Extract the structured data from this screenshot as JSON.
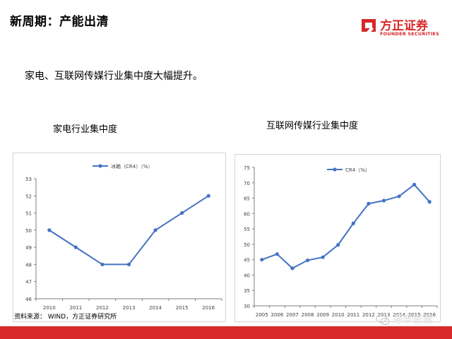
{
  "header": {
    "title": "新周期：产能出清",
    "logo_cn": "方正证券",
    "logo_en": "FOUNDER SECURITIES",
    "brand_color": "#d7282a"
  },
  "subtitle": "家电、互联网传媒行业集中度大幅提升。",
  "source": "资料来源： WIND，方正证券研究所",
  "watermark": "泽平宏观",
  "chart_data": [
    {
      "type": "line",
      "title": "家电行业集中度",
      "categories": [
        "2010",
        "2011",
        "2012",
        "2013",
        "2014",
        "2015",
        "2016"
      ],
      "series": [
        {
          "name": "冰箱（CR4）（%）",
          "values": [
            50,
            49,
            48,
            48,
            50,
            51,
            52
          ],
          "color": "#4472c4"
        }
      ],
      "ylim": [
        46,
        53
      ],
      "yticks": [
        "46",
        "47",
        "48",
        "49",
        "50",
        "51",
        "52",
        "53"
      ],
      "grid": false,
      "legend": "top-center"
    },
    {
      "type": "line",
      "title": "互联网传媒行业集中度",
      "categories": [
        "2005",
        "2006",
        "2007",
        "2008",
        "2009",
        "2010",
        "2011",
        "2012",
        "2013",
        "2014",
        "2015",
        "2016"
      ],
      "series": [
        {
          "name": "CR4（%）",
          "values": [
            45,
            46.8,
            42.2,
            44.8,
            45.8,
            49.8,
            56.8,
            63.2,
            64.2,
            65.6,
            69.4,
            63.8
          ],
          "color": "#4472c4"
        }
      ],
      "ylim": [
        30,
        75
      ],
      "yticks": [
        "30",
        "35",
        "40",
        "45",
        "50",
        "55",
        "60",
        "65",
        "70",
        "75"
      ],
      "grid": false,
      "legend": "top-left"
    }
  ]
}
